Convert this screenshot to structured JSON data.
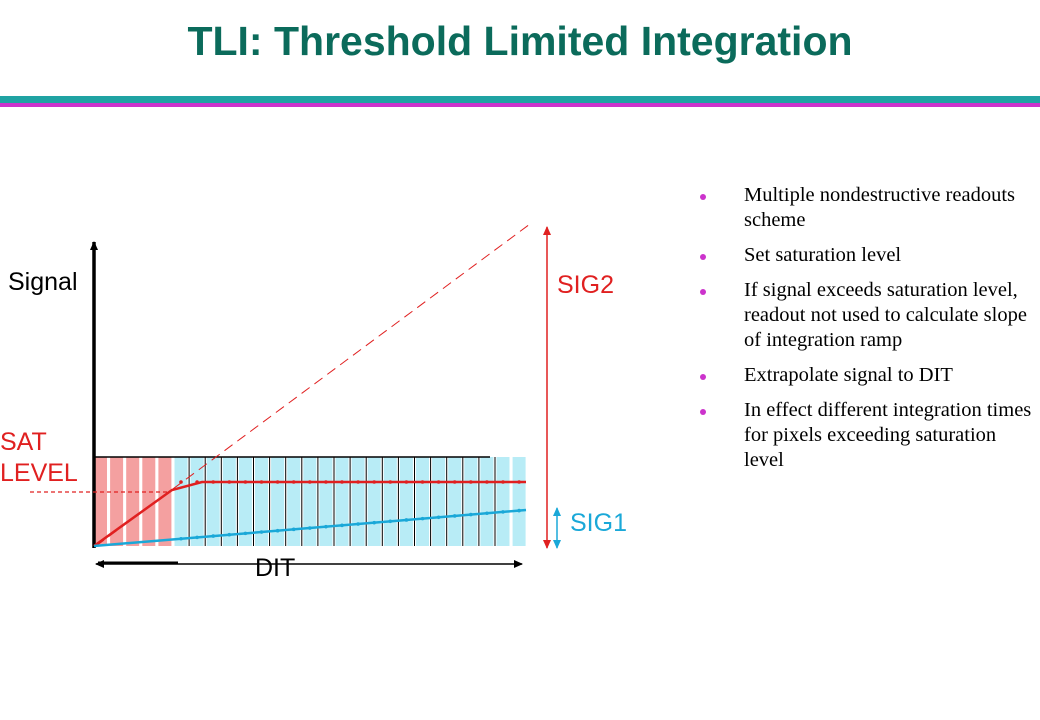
{
  "slide": {
    "title": "TLI: Threshold Limited Integration",
    "colors": {
      "title": "#0b6b5b",
      "rule_teal": "#1fa3a3",
      "rule_magenta": "#cc33cc",
      "saturated_bar": "#f4a0a0",
      "unsaturated_bar": "#b8ecf6",
      "red_curve": "#e02020",
      "blue_curve": "#1aa8d8"
    }
  },
  "diagram": {
    "y_axis_label": "Signal",
    "sat_label_line1": "SAT",
    "sat_label_line2": "LEVEL",
    "sig2_label": "SIG2",
    "sig1_label": "SIG1",
    "dit_label": "DIT",
    "readouts": {
      "total": 27,
      "saturated": 5
    }
  },
  "bullets": [
    "Multiple nondestructive readouts scheme",
    "Set saturation level",
    "If signal exceeds saturation level, readout not used to calculate slope of integration ramp",
    "Extrapolate signal to DIT",
    "In effect different integration times for pixels exceeding saturation level"
  ]
}
